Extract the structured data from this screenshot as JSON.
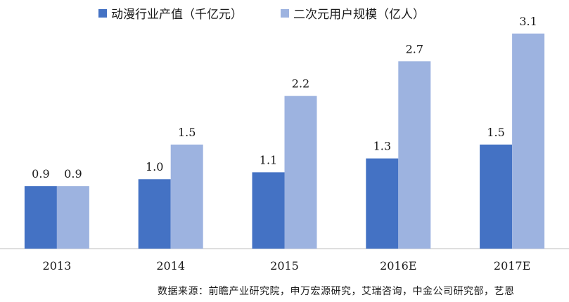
{
  "chart_data": {
    "type": "bar",
    "categories": [
      "2013",
      "2014",
      "2015",
      "2016E",
      "2017E"
    ],
    "series": [
      {
        "name": "动漫行业产值（千亿元）",
        "values": [
          0.9,
          1.0,
          1.1,
          1.3,
          1.5
        ],
        "color": "#4472c4"
      },
      {
        "name": "二次元用户规模（亿人）",
        "values": [
          0.9,
          1.5,
          2.2,
          2.7,
          3.1
        ],
        "color": "#9db3e0"
      }
    ],
    "data_labels": [
      [
        "0.9",
        "1.0",
        "1.1",
        "1.3",
        "1.5"
      ],
      [
        "0.9",
        "1.5",
        "2.2",
        "2.7",
        "3.1"
      ]
    ],
    "ylim": [
      0,
      3.3
    ],
    "grid": false,
    "legend": "top",
    "source": "数据来源：前瞻产业研究院，申万宏源研究，艾瑞咨询，中金公司研究部，艺恩"
  }
}
